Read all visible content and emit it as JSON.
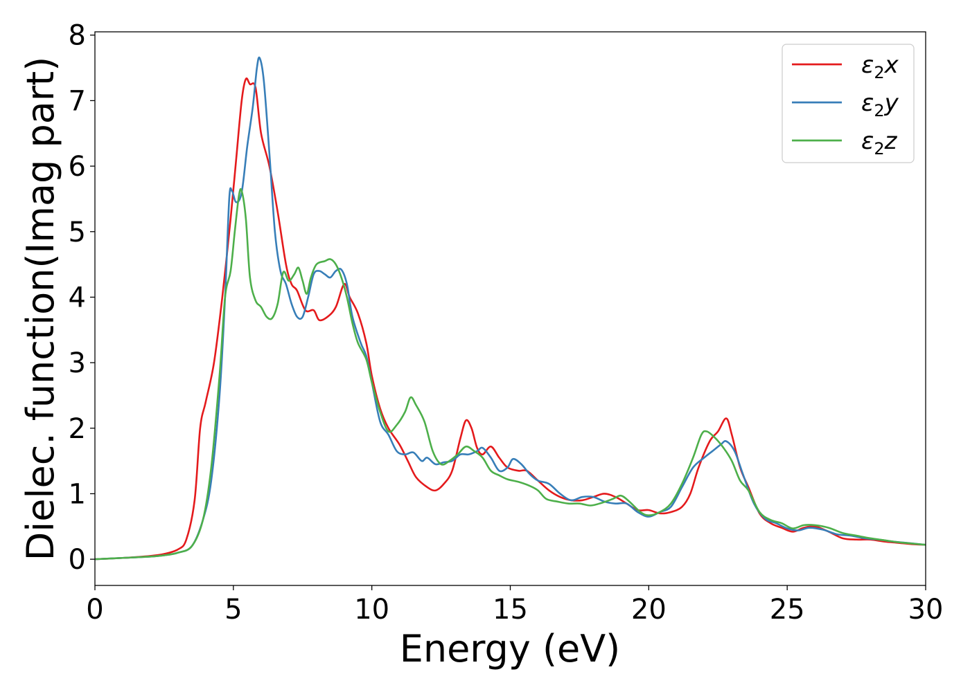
{
  "chart_data": {
    "type": "line",
    "title": "",
    "xlabel": "Energy (eV)",
    "ylabel": "Dielec. function(Imag part)",
    "xlim": [
      0,
      30
    ],
    "ylim": [
      -0.4,
      8.05
    ],
    "xticks": [
      0,
      5,
      10,
      15,
      20,
      25,
      30
    ],
    "yticks": [
      0,
      1,
      2,
      3,
      4,
      5,
      6,
      7,
      8
    ],
    "grid": false,
    "legend": {
      "placement": "top-right",
      "entries": [
        {
          "prefix": "ε",
          "sub": "2",
          "suffix": "x"
        },
        {
          "prefix": "ε",
          "sub": "2",
          "suffix": "y"
        },
        {
          "prefix": "ε",
          "sub": "2",
          "suffix": "z"
        }
      ]
    },
    "series": [
      {
        "name": "ε2x",
        "color": "#e41a1c",
        "points": [
          [
            0,
            0.0
          ],
          [
            1,
            0.02
          ],
          [
            2,
            0.05
          ],
          [
            2.5,
            0.08
          ],
          [
            3,
            0.15
          ],
          [
            3.3,
            0.3
          ],
          [
            3.6,
            0.9
          ],
          [
            3.8,
            2.0
          ],
          [
            4,
            2.4
          ],
          [
            4.3,
            3.0
          ],
          [
            4.6,
            4.0
          ],
          [
            4.9,
            5.2
          ],
          [
            5.1,
            6.1
          ],
          [
            5.3,
            7.0
          ],
          [
            5.45,
            7.33
          ],
          [
            5.6,
            7.25
          ],
          [
            5.8,
            7.2
          ],
          [
            6.0,
            6.5
          ],
          [
            6.3,
            6.0
          ],
          [
            6.6,
            5.3
          ],
          [
            6.9,
            4.5
          ],
          [
            7.1,
            4.2
          ],
          [
            7.3,
            4.1
          ],
          [
            7.6,
            3.8
          ],
          [
            7.9,
            3.8
          ],
          [
            8.1,
            3.65
          ],
          [
            8.4,
            3.7
          ],
          [
            8.7,
            3.85
          ],
          [
            9.0,
            4.2
          ],
          [
            9.2,
            4.0
          ],
          [
            9.5,
            3.75
          ],
          [
            9.8,
            3.3
          ],
          [
            10,
            2.8
          ],
          [
            10.3,
            2.3
          ],
          [
            10.6,
            2.0
          ],
          [
            11,
            1.75
          ],
          [
            11.3,
            1.5
          ],
          [
            11.6,
            1.25
          ],
          [
            12,
            1.1
          ],
          [
            12.3,
            1.05
          ],
          [
            12.6,
            1.15
          ],
          [
            12.9,
            1.35
          ],
          [
            13.2,
            1.85
          ],
          [
            13.4,
            2.12
          ],
          [
            13.6,
            2.0
          ],
          [
            13.8,
            1.7
          ],
          [
            14.0,
            1.6
          ],
          [
            14.3,
            1.72
          ],
          [
            14.6,
            1.55
          ],
          [
            14.9,
            1.4
          ],
          [
            15.3,
            1.35
          ],
          [
            15.6,
            1.35
          ],
          [
            16,
            1.2
          ],
          [
            16.4,
            1.05
          ],
          [
            16.8,
            0.95
          ],
          [
            17.2,
            0.9
          ],
          [
            17.6,
            0.9
          ],
          [
            18,
            0.95
          ],
          [
            18.4,
            1.0
          ],
          [
            18.8,
            0.95
          ],
          [
            19.2,
            0.85
          ],
          [
            19.6,
            0.75
          ],
          [
            20,
            0.75
          ],
          [
            20.4,
            0.7
          ],
          [
            20.8,
            0.72
          ],
          [
            21.2,
            0.8
          ],
          [
            21.5,
            1.0
          ],
          [
            21.8,
            1.4
          ],
          [
            22.2,
            1.8
          ],
          [
            22.5,
            1.95
          ],
          [
            22.8,
            2.15
          ],
          [
            23.0,
            1.9
          ],
          [
            23.3,
            1.4
          ],
          [
            23.6,
            1.1
          ],
          [
            24,
            0.7
          ],
          [
            24.4,
            0.55
          ],
          [
            24.8,
            0.48
          ],
          [
            25.2,
            0.42
          ],
          [
            25.6,
            0.48
          ],
          [
            26,
            0.5
          ],
          [
            26.5,
            0.42
          ],
          [
            27,
            0.32
          ],
          [
            27.5,
            0.3
          ],
          [
            28,
            0.3
          ],
          [
            28.5,
            0.27
          ],
          [
            29,
            0.25
          ],
          [
            29.5,
            0.23
          ],
          [
            30,
            0.22
          ]
        ]
      },
      {
        "name": "ε2y",
        "color": "#377eb8",
        "points": [
          [
            0,
            0.0
          ],
          [
            1,
            0.02
          ],
          [
            2,
            0.04
          ],
          [
            2.5,
            0.06
          ],
          [
            3,
            0.1
          ],
          [
            3.5,
            0.2
          ],
          [
            3.9,
            0.6
          ],
          [
            4.2,
            1.2
          ],
          [
            4.5,
            2.5
          ],
          [
            4.7,
            4.0
          ],
          [
            4.85,
            5.5
          ],
          [
            4.95,
            5.62
          ],
          [
            5.1,
            5.45
          ],
          [
            5.3,
            5.6
          ],
          [
            5.5,
            6.3
          ],
          [
            5.7,
            6.9
          ],
          [
            5.85,
            7.5
          ],
          [
            5.95,
            7.65
          ],
          [
            6.1,
            7.3
          ],
          [
            6.3,
            6.2
          ],
          [
            6.5,
            5.0
          ],
          [
            6.7,
            4.4
          ],
          [
            6.9,
            4.2
          ],
          [
            7.1,
            3.9
          ],
          [
            7.3,
            3.7
          ],
          [
            7.5,
            3.7
          ],
          [
            7.7,
            4.0
          ],
          [
            7.9,
            4.35
          ],
          [
            8.1,
            4.4
          ],
          [
            8.3,
            4.35
          ],
          [
            8.5,
            4.3
          ],
          [
            8.7,
            4.4
          ],
          [
            8.9,
            4.42
          ],
          [
            9.1,
            4.2
          ],
          [
            9.3,
            3.7
          ],
          [
            9.6,
            3.3
          ],
          [
            9.8,
            3.1
          ],
          [
            10,
            2.7
          ],
          [
            10.3,
            2.1
          ],
          [
            10.6,
            1.9
          ],
          [
            10.9,
            1.65
          ],
          [
            11.2,
            1.6
          ],
          [
            11.5,
            1.63
          ],
          [
            11.8,
            1.5
          ],
          [
            12.0,
            1.55
          ],
          [
            12.3,
            1.45
          ],
          [
            12.6,
            1.48
          ],
          [
            12.9,
            1.5
          ],
          [
            13.2,
            1.6
          ],
          [
            13.5,
            1.6
          ],
          [
            13.8,
            1.65
          ],
          [
            14.0,
            1.7
          ],
          [
            14.3,
            1.55
          ],
          [
            14.6,
            1.35
          ],
          [
            14.9,
            1.4
          ],
          [
            15.1,
            1.53
          ],
          [
            15.4,
            1.45
          ],
          [
            15.7,
            1.3
          ],
          [
            16,
            1.2
          ],
          [
            16.4,
            1.15
          ],
          [
            16.8,
            1.0
          ],
          [
            17.2,
            0.9
          ],
          [
            17.6,
            0.95
          ],
          [
            18,
            0.95
          ],
          [
            18.4,
            0.88
          ],
          [
            18.8,
            0.85
          ],
          [
            19.2,
            0.85
          ],
          [
            19.6,
            0.72
          ],
          [
            20,
            0.65
          ],
          [
            20.4,
            0.72
          ],
          [
            20.8,
            0.8
          ],
          [
            21.2,
            1.1
          ],
          [
            21.6,
            1.4
          ],
          [
            22,
            1.55
          ],
          [
            22.3,
            1.65
          ],
          [
            22.6,
            1.75
          ],
          [
            22.8,
            1.8
          ],
          [
            23.1,
            1.65
          ],
          [
            23.4,
            1.3
          ],
          [
            23.8,
            0.85
          ],
          [
            24.2,
            0.62
          ],
          [
            24.6,
            0.55
          ],
          [
            25,
            0.47
          ],
          [
            25.4,
            0.44
          ],
          [
            25.8,
            0.48
          ],
          [
            26.3,
            0.45
          ],
          [
            26.8,
            0.38
          ],
          [
            27.3,
            0.36
          ],
          [
            27.8,
            0.32
          ],
          [
            28.3,
            0.3
          ],
          [
            28.8,
            0.27
          ],
          [
            29.3,
            0.25
          ],
          [
            30,
            0.22
          ]
        ]
      },
      {
        "name": "ε2z",
        "color": "#4daf4a",
        "points": [
          [
            0,
            0.0
          ],
          [
            1,
            0.02
          ],
          [
            2,
            0.04
          ],
          [
            2.5,
            0.06
          ],
          [
            3,
            0.1
          ],
          [
            3.5,
            0.2
          ],
          [
            3.9,
            0.6
          ],
          [
            4.2,
            1.4
          ],
          [
            4.5,
            2.8
          ],
          [
            4.7,
            4.0
          ],
          [
            4.9,
            4.4
          ],
          [
            5.05,
            5.0
          ],
          [
            5.2,
            5.55
          ],
          [
            5.3,
            5.62
          ],
          [
            5.45,
            5.2
          ],
          [
            5.6,
            4.3
          ],
          [
            5.8,
            3.95
          ],
          [
            6.0,
            3.85
          ],
          [
            6.2,
            3.7
          ],
          [
            6.4,
            3.68
          ],
          [
            6.6,
            3.9
          ],
          [
            6.8,
            4.38
          ],
          [
            7.0,
            4.25
          ],
          [
            7.2,
            4.35
          ],
          [
            7.35,
            4.45
          ],
          [
            7.5,
            4.25
          ],
          [
            7.65,
            4.05
          ],
          [
            7.8,
            4.3
          ],
          [
            8.0,
            4.5
          ],
          [
            8.3,
            4.55
          ],
          [
            8.5,
            4.58
          ],
          [
            8.7,
            4.5
          ],
          [
            8.9,
            4.3
          ],
          [
            9.1,
            4.0
          ],
          [
            9.3,
            3.6
          ],
          [
            9.5,
            3.3
          ],
          [
            9.8,
            3.05
          ],
          [
            10,
            2.7
          ],
          [
            10.3,
            2.25
          ],
          [
            10.6,
            1.95
          ],
          [
            10.9,
            2.05
          ],
          [
            11.2,
            2.25
          ],
          [
            11.4,
            2.47
          ],
          [
            11.6,
            2.35
          ],
          [
            11.9,
            2.1
          ],
          [
            12.2,
            1.65
          ],
          [
            12.5,
            1.45
          ],
          [
            12.8,
            1.5
          ],
          [
            13.1,
            1.6
          ],
          [
            13.4,
            1.72
          ],
          [
            13.7,
            1.65
          ],
          [
            14.0,
            1.55
          ],
          [
            14.3,
            1.35
          ],
          [
            14.6,
            1.28
          ],
          [
            14.9,
            1.22
          ],
          [
            15.3,
            1.18
          ],
          [
            15.7,
            1.12
          ],
          [
            16,
            1.05
          ],
          [
            16.3,
            0.92
          ],
          [
            16.7,
            0.88
          ],
          [
            17.1,
            0.85
          ],
          [
            17.5,
            0.85
          ],
          [
            17.9,
            0.82
          ],
          [
            18.3,
            0.86
          ],
          [
            18.7,
            0.92
          ],
          [
            19.0,
            0.97
          ],
          [
            19.3,
            0.88
          ],
          [
            19.7,
            0.72
          ],
          [
            20,
            0.67
          ],
          [
            20.4,
            0.72
          ],
          [
            20.8,
            0.85
          ],
          [
            21.2,
            1.15
          ],
          [
            21.6,
            1.55
          ],
          [
            21.9,
            1.9
          ],
          [
            22.1,
            1.95
          ],
          [
            22.4,
            1.85
          ],
          [
            22.7,
            1.7
          ],
          [
            23.0,
            1.5
          ],
          [
            23.3,
            1.2
          ],
          [
            23.6,
            1.05
          ],
          [
            24,
            0.72
          ],
          [
            24.4,
            0.6
          ],
          [
            24.8,
            0.55
          ],
          [
            25.2,
            0.47
          ],
          [
            25.6,
            0.52
          ],
          [
            26,
            0.52
          ],
          [
            26.5,
            0.48
          ],
          [
            27,
            0.4
          ],
          [
            27.5,
            0.36
          ],
          [
            28,
            0.32
          ],
          [
            28.5,
            0.29
          ],
          [
            29,
            0.26
          ],
          [
            29.5,
            0.24
          ],
          [
            30,
            0.22
          ]
        ]
      }
    ]
  }
}
